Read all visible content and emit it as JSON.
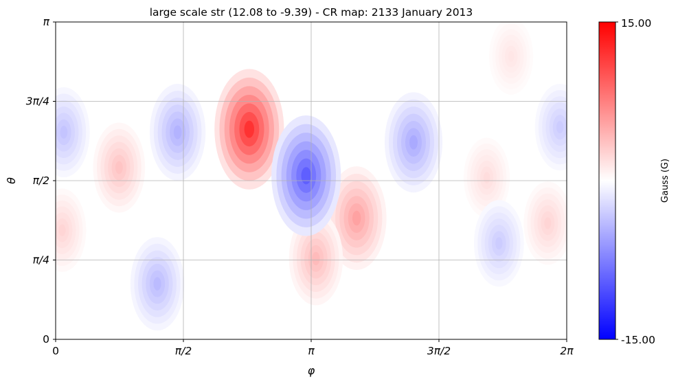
{
  "chart_data": {
    "type": "heatmap",
    "title": "large scale str (12.08 to -9.39) - CR map: 2133 January 2013",
    "xlabel": "φ",
    "ylabel": "θ",
    "xlim": [
      0,
      6.283185307
    ],
    "ylim": [
      0,
      3.141592654
    ],
    "x_ticks": [
      {
        "value": 0,
        "label": "0"
      },
      {
        "value": 1.570796327,
        "label": "π/2"
      },
      {
        "value": 3.141592654,
        "label": "π"
      },
      {
        "value": 4.71238898,
        "label": "3π/2"
      },
      {
        "value": 6.283185307,
        "label": "2π"
      }
    ],
    "y_ticks": [
      {
        "value": 0,
        "label": "0"
      },
      {
        "value": 0.785398163,
        "label": "π/4"
      },
      {
        "value": 1.570796327,
        "label": "π/2"
      },
      {
        "value": 2.35619449,
        "label": "3π/4"
      },
      {
        "value": 3.141592654,
        "label": "π"
      }
    ],
    "grid": true,
    "colorbar": {
      "label": "Gauss (G)",
      "vmin": -15.0,
      "vmax": 15.0,
      "min_label": "-15.00",
      "max_label": "15.00",
      "colormap": "bwr",
      "colors": {
        "low": "#0000ff",
        "mid": "#ffffff",
        "high": "#ff0000"
      }
    },
    "features": [
      {
        "kind": "positive",
        "phi": 2.38,
        "theta": 2.08,
        "value": 12.08
      },
      {
        "kind": "positive",
        "phi": 3.7,
        "theta": 1.2,
        "value": 5.5
      },
      {
        "kind": "positive",
        "phi": 3.2,
        "theta": 0.8,
        "value": 4.0
      },
      {
        "kind": "positive",
        "phi": 0.78,
        "theta": 1.7,
        "value": 3.5
      },
      {
        "kind": "positive",
        "phi": 0.08,
        "theta": 1.08,
        "value": 2.5
      },
      {
        "kind": "positive",
        "phi": 6.05,
        "theta": 1.15,
        "value": 2.5
      },
      {
        "kind": "positive",
        "phi": 5.3,
        "theta": 1.6,
        "value": 2.0
      },
      {
        "kind": "positive",
        "phi": 5.6,
        "theta": 2.8,
        "value": 1.5
      },
      {
        "kind": "negative",
        "phi": 3.08,
        "theta": 1.62,
        "value": -9.39
      },
      {
        "kind": "negative",
        "phi": 4.4,
        "theta": 1.95,
        "value": -5.0
      },
      {
        "kind": "negative",
        "phi": 1.5,
        "theta": 2.05,
        "value": -4.5
      },
      {
        "kind": "negative",
        "phi": 1.25,
        "theta": 0.55,
        "value": -4.0
      },
      {
        "kind": "negative",
        "phi": 0.1,
        "theta": 2.05,
        "value": -3.5
      },
      {
        "kind": "negative",
        "phi": 6.2,
        "theta": 2.1,
        "value": -3.0
      },
      {
        "kind": "negative",
        "phi": 5.45,
        "theta": 0.95,
        "value": -3.0
      }
    ]
  }
}
